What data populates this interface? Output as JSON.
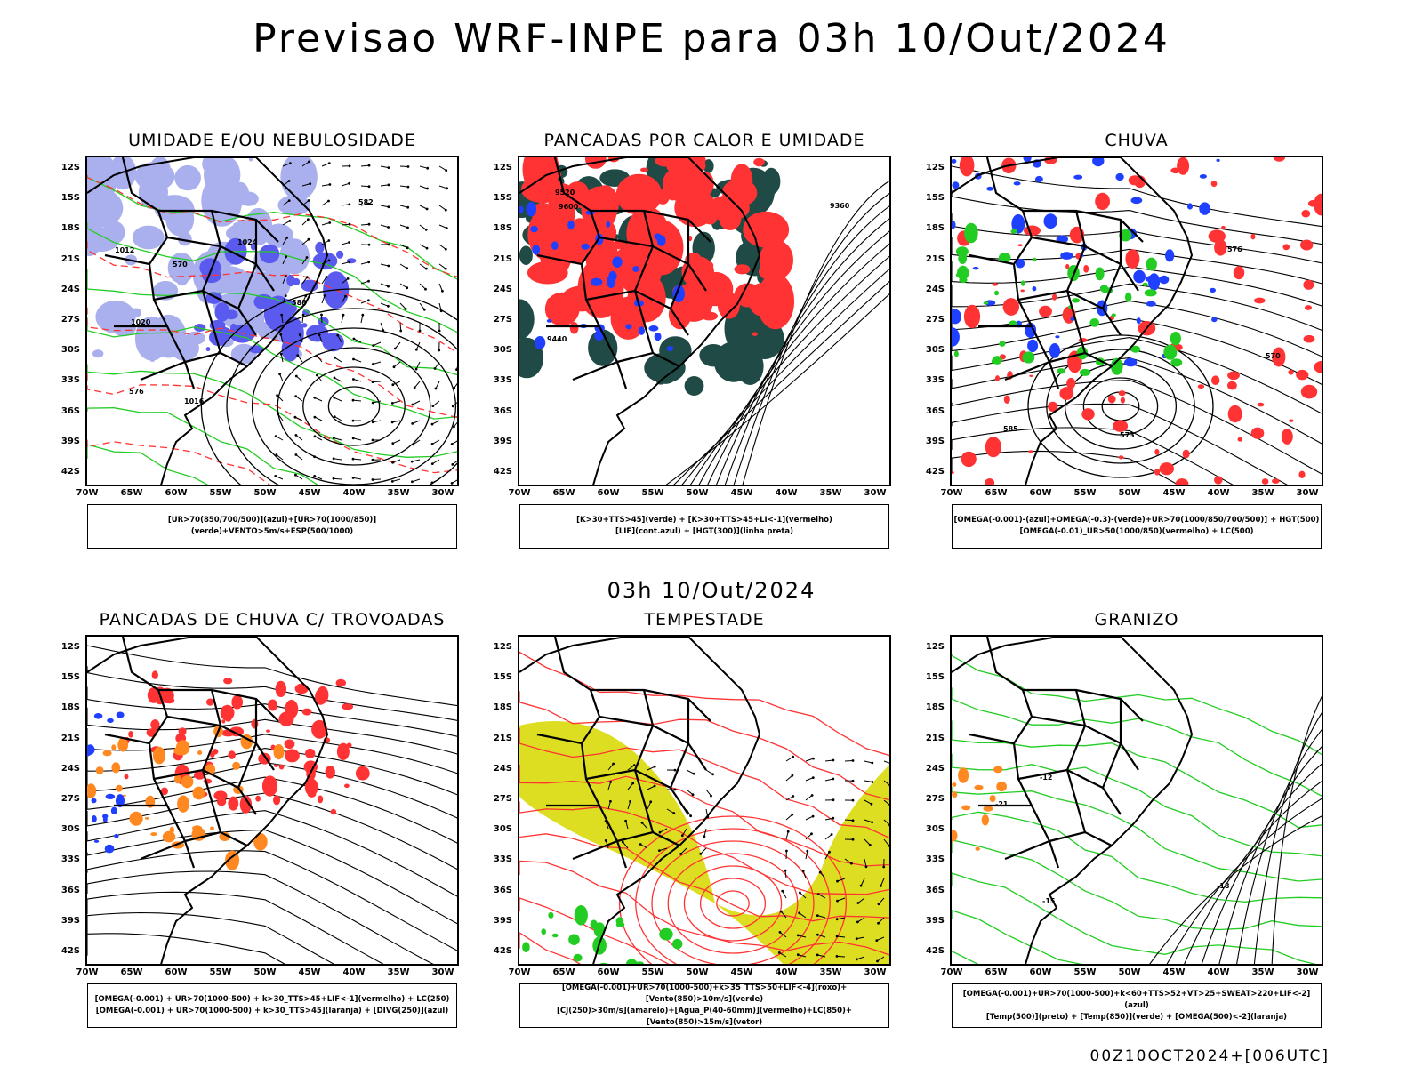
{
  "main_title": "Previsao WRF-INPE  para 03h 10/Out/2024",
  "mid_time": "03h 10/Out/2024",
  "footer": "00Z10OCT2024+[006UTC]",
  "axes": {
    "lat_labels": [
      "12S",
      "15S",
      "18S",
      "21S",
      "24S",
      "27S",
      "30S",
      "33S",
      "36S",
      "39S",
      "42S"
    ],
    "lon_labels": [
      "70W",
      "65W",
      "60W",
      "55W",
      "50W",
      "45W",
      "40W",
      "35W",
      "30W"
    ]
  },
  "colors": {
    "blue_light": "#aab0ee",
    "blue_mid": "#5a5aee",
    "blue": "#2040ff",
    "green": "#22cc22",
    "red": "#ff3333",
    "dark_teal": "#1f4a45",
    "orange": "#ff8820",
    "yellow": "#dddd22"
  },
  "panels": [
    {
      "title": "UMIDADE E/OU NEBULOSIDADE",
      "legend": [
        "[UR>70(850/700/500)](azul)+[UR>70(1000/850)](verde)+VENTO>5m/s+ESP(500/1000)"
      ],
      "contour_labels": [
        "1012",
        "1016",
        "1020",
        "1024",
        "570",
        "576",
        "582",
        "588"
      ]
    },
    {
      "title": "PANCADAS POR CALOR E UMIDADE",
      "legend": [
        "[K>30+TTS>45](verde) + [K>30+TTS>45+LI<-1](vermelho)",
        "[LIF](cont.azul) + [HGT(300)](linha preta)"
      ],
      "contour_labels": [
        "9600",
        "9520",
        "9440",
        "9360"
      ]
    },
    {
      "title": "CHUVA",
      "legend": [
        "[OMEGA(-0.001)-(azul)+OMEGA(-0.3)-(verde)+UR>70(1000/850/700/500)] + HGT(500)",
        "[OMEGA(-0.01)_UR>50(1000/850)(vermelho) + LC(500)"
      ],
      "contour_labels": [
        "585",
        "576",
        "570",
        "573"
      ]
    },
    {
      "title": "PANCADAS DE CHUVA C/ TROVOADAS",
      "legend": [
        "[OMEGA(-0.001) + UR>70(1000-500) + k>30_TTS>45+LIF<-1](vermelho) + LC(250)",
        "[OMEGA(-0.001) + UR>70(1000-500) + k>30_TTS>45](laranja) + [DIVG(250)](azul)"
      ],
      "contour_labels": []
    },
    {
      "title": "TEMPESTADE",
      "legend": [
        "[OMEGA(-0.001)+UR>70(1000-500)+k>35_TTS>50+LIF<-4](roxo)+[Vento(850)>10m/s](verde)",
        "[CJ(250)>30m/s](amarelo)+[Agua_P(40-60mm)](vermelho)+LC(850)+[Vento(850)>15m/s](vetor)"
      ],
      "contour_labels": []
    },
    {
      "title": "GRANIZO",
      "legend": [
        "[OMEGA(-0.001)+UR>70(1000-500)+k<60+TTS>52+VT>25+SWEAT>220+LIF<-2](azul)",
        "[Temp(500)](preto) + [Temp(850)](verde) + [OMEGA(500)<-2](laranja)"
      ],
      "contour_labels": [
        "-12",
        "-15",
        "-18",
        "-21"
      ]
    }
  ]
}
